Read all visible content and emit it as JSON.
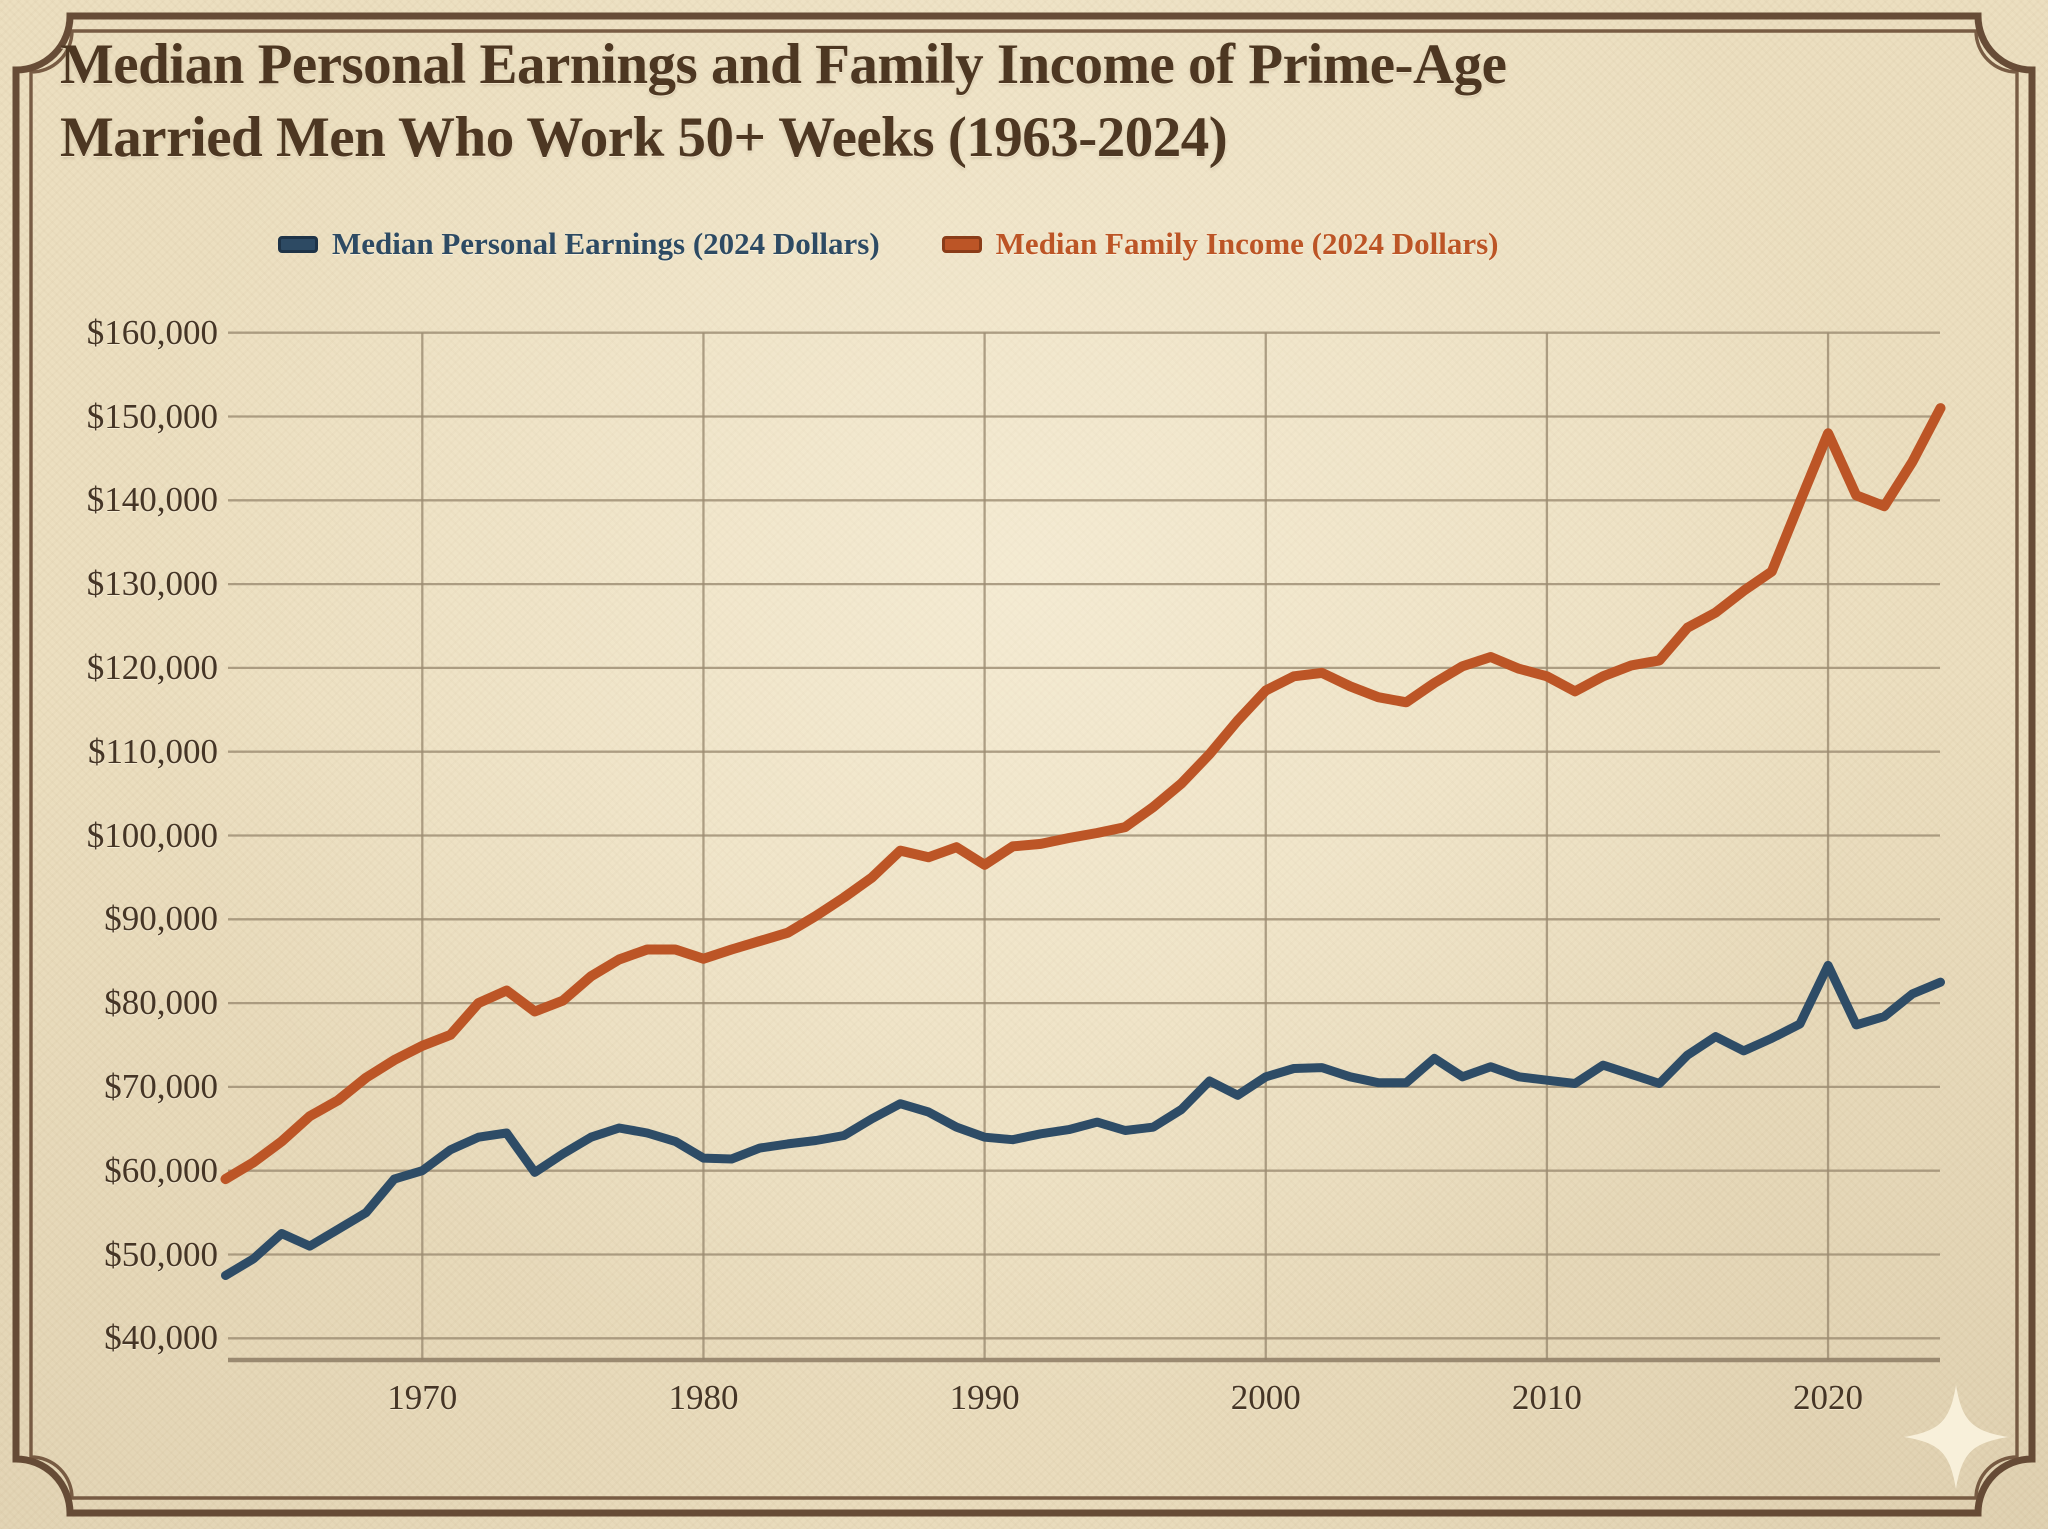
{
  "title": {
    "line1": "Median Personal Earnings and Family Income of Prime-Age",
    "line2": "Married Men Who Work 50+ Weeks (1963-2024)"
  },
  "legend": {
    "items": [
      {
        "label": "Median Personal Earnings (2024 Dollars)",
        "color": "#2d4a63",
        "border": "#1e3347"
      },
      {
        "label": "Median Family Income (2024 Dollars)",
        "color": "#bc5526",
        "border": "#8a3c18"
      }
    ]
  },
  "colors": {
    "background": "#ecdfc0",
    "border_frame": "#5d412c",
    "gridline": "#9c8c72",
    "axis": "#93826a",
    "title_text": "#4d3722",
    "tick_text": "#453526",
    "sparkle": "#f9f1dc"
  },
  "chart_data": {
    "type": "line",
    "title": "Median Personal Earnings and Family Income of Prime-Age Married Men Who Work 50+ Weeks (1963-2024)",
    "xlabel": "",
    "ylabel": "",
    "grid": true,
    "legend_position": "top",
    "xlim": [
      1963,
      2024
    ],
    "ylim": [
      40000,
      160000
    ],
    "xticks": [
      1970,
      1980,
      1990,
      2000,
      2010,
      2020
    ],
    "yticks": [
      {
        "value": 160000,
        "label": "$160,000"
      },
      {
        "value": 150000,
        "label": "$150,000"
      },
      {
        "value": 140000,
        "label": "$140,000"
      },
      {
        "value": 130000,
        "label": "$130,000"
      },
      {
        "value": 120000,
        "label": "$120,000"
      },
      {
        "value": 110000,
        "label": "$110,000"
      },
      {
        "value": 100000,
        "label": "$100,000"
      },
      {
        "value": 90000,
        "label": "$90,000"
      },
      {
        "value": 80000,
        "label": "$80,000"
      },
      {
        "value": 70000,
        "label": "$70,000"
      },
      {
        "value": 60000,
        "label": "$60,000"
      },
      {
        "value": 50000,
        "label": "$50,000"
      },
      {
        "value": 40000,
        "label": "$40,000"
      }
    ],
    "x": [
      1963,
      1964,
      1965,
      1966,
      1967,
      1968,
      1969,
      1970,
      1971,
      1972,
      1973,
      1974,
      1975,
      1976,
      1977,
      1978,
      1979,
      1980,
      1981,
      1982,
      1983,
      1984,
      1985,
      1986,
      1987,
      1988,
      1989,
      1990,
      1991,
      1992,
      1993,
      1994,
      1995,
      1996,
      1997,
      1998,
      1999,
      2000,
      2001,
      2002,
      2003,
      2004,
      2005,
      2006,
      2007,
      2008,
      2009,
      2010,
      2011,
      2012,
      2013,
      2014,
      2015,
      2016,
      2017,
      2018,
      2019,
      2020,
      2021,
      2022,
      2023,
      2024
    ],
    "series": [
      {
        "name": "Median Personal Earnings (2024 Dollars)",
        "color": "#2e4c66",
        "stroke_width": 9,
        "values": [
          47500,
          49500,
          52500,
          51000,
          53000,
          55000,
          59000,
          60000,
          62500,
          64000,
          64500,
          59800,
          62000,
          64000,
          65100,
          64500,
          63500,
          61500,
          61400,
          62700,
          63200,
          63600,
          64200,
          66200,
          68000,
          67000,
          65200,
          64000,
          63700,
          64400,
          64900,
          65800,
          64800,
          65200,
          67300,
          70700,
          69000,
          71200,
          72200,
          72300,
          71200,
          70500,
          70500,
          73400,
          71200,
          72400,
          71200,
          70800,
          70400,
          72600,
          71500,
          70400,
          73800,
          76000,
          74300,
          75800,
          77500,
          84500,
          77400,
          78400,
          81100,
          82500
        ]
      },
      {
        "name": "Median Family Income (2024 Dollars)",
        "color": "#bc5526",
        "stroke_width": 10,
        "values": [
          59000,
          61000,
          63500,
          66500,
          68400,
          71100,
          73200,
          74900,
          76200,
          80000,
          81500,
          79000,
          80300,
          83200,
          85200,
          86400,
          86400,
          85300,
          86400,
          87400,
          88400,
          90400,
          92600,
          95000,
          98200,
          97400,
          98600,
          96500,
          98700,
          99000,
          99700,
          100300,
          101000,
          103400,
          106200,
          109700,
          113700,
          117300,
          119000,
          119400,
          117800,
          116500,
          115900,
          118200,
          120200,
          121300,
          119900,
          119000,
          117200,
          119000,
          120300,
          120900,
          124800,
          126600,
          129200,
          131500,
          139800,
          148000,
          140600,
          139300,
          144600,
          151000
        ]
      }
    ]
  }
}
